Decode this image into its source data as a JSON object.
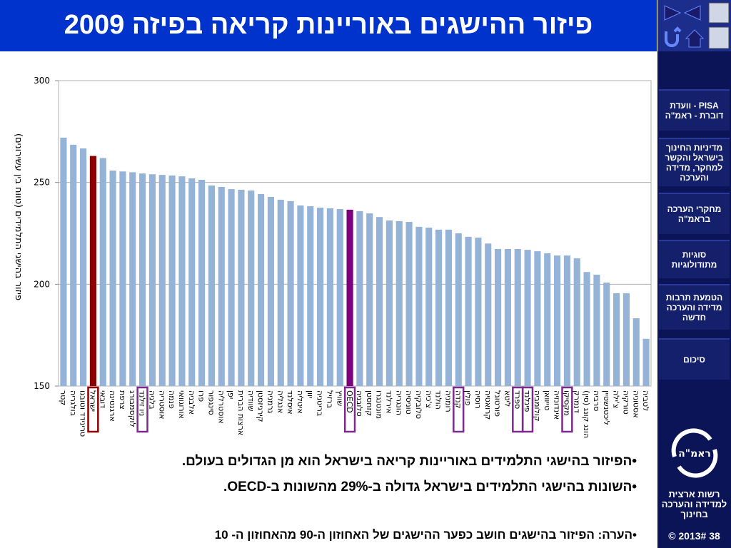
{
  "header": {
    "title": "פיזור ההישגים באוריינות קריאה בפיזה 2009"
  },
  "chart_data": {
    "type": "bar",
    "y_label": "פיזור בהישגי התלמידים (טווח בין עשירונים)",
    "categories": [
      "קטר",
      "בולגריה",
      "טרינידד וטובגו",
      "ישראל",
      "דובאי",
      "ארגנטינה",
      "צרפת",
      "לוקסמבורג",
      "ניו זילנד",
      "בלגיה",
      "אוסטריה",
      "פנמה",
      "אורוגוואי",
      "אלבניה",
      "פרו",
      "סינגפור",
      "אוסטרליה",
      "יפן",
      "ארצות הברית",
      "שוודיה",
      "קירגיזסטן",
      "גרמניה",
      "אנגליה",
      "איסלנד",
      "איטליה",
      "יוון",
      "בריטניה",
      "ברזיל",
      "שוויץ",
      "OECD",
      "סלובניה",
      "קזחסטן",
      "מונטנגרו",
      "אירלנד",
      "הונגריה",
      "טוניסיה",
      "סלובקיה",
      "צ'כיה",
      "הולנד",
      "רומניה",
      "קנדה",
      "פולין",
      "רוסיה",
      "קרואטיה",
      "פורטוגל",
      "ליטא",
      "ספרד",
      "פינלנד",
      "קולומביה",
      "טייוואן",
      "אינדונזיה",
      "מקסיקו",
      "דנמרק",
      "הונג קונג (סין)",
      "סרביה",
      "ליכטנשטיין",
      "צ'ילה",
      "טורקיה",
      "אסטוניה",
      "לטביה"
    ],
    "values": [
      272,
      268.5,
      266.7,
      263,
      262,
      255.8,
      255.4,
      255,
      254.4,
      254,
      253.7,
      253.4,
      253,
      252,
      251.3,
      248.5,
      247.8,
      246.7,
      246.4,
      246,
      244.3,
      242.9,
      241.5,
      240.8,
      238.7,
      238.3,
      237.6,
      237.3,
      236.9,
      236.6,
      235.9,
      234.8,
      233,
      231.3,
      231,
      230.6,
      228.2,
      227.8,
      226.8,
      226.8,
      225,
      223.3,
      222.9,
      220,
      217.3,
      217.3,
      217.3,
      216.9,
      216.2,
      215.2,
      214.1,
      214.1,
      212.7,
      206,
      204.7,
      200.8,
      195.6,
      195.6,
      183.3,
      173.2
    ],
    "color": "#95b3d7",
    "colors": {
      "3": "#8b0000",
      "29": "#7b007b"
    },
    "outlined": {
      "3": "#8b0000",
      "8": "#7b2a8b",
      "29": "#7b2a8b",
      "40": "#7b2a8b",
      "46": "#7b2a8b",
      "47": "#7b2a8b",
      "51": "#7b2a8b"
    },
    "ylim": [
      150,
      300
    ],
    "yticks": [
      150,
      200,
      250,
      300
    ],
    "grid": true
  },
  "bullets": [
    "•הפיזור בהישגי התלמידים באוריינות קריאה בישראל הוא מן הגדולים בעולם.",
    "•השונות בהישגי התלמידים בישראל גדולה ב-29% מהשונות ב-OECD."
  ],
  "note": "•הערה: הפיזור בהישגים חושב כפער ההישגים של האחוזון ה-90 מהאחוזון ה- 10",
  "sidebar": {
    "menu": [
      "PISA - וועדת דוברת - ראמ\"ה",
      "מדיניות החינוך בישראל והקשר למחקר, מדידה והערכה",
      "מחקרי הערכה בראמ\"ה",
      "סוגיות מתודולוגיות",
      "הטמעת תרבות מדידה והערכה חדשה",
      "סיכום"
    ],
    "logo": "ראמ\"ה",
    "org": "רשות ארצית למדידה והערכה בחינוך",
    "footer": "© 2013# 38"
  }
}
